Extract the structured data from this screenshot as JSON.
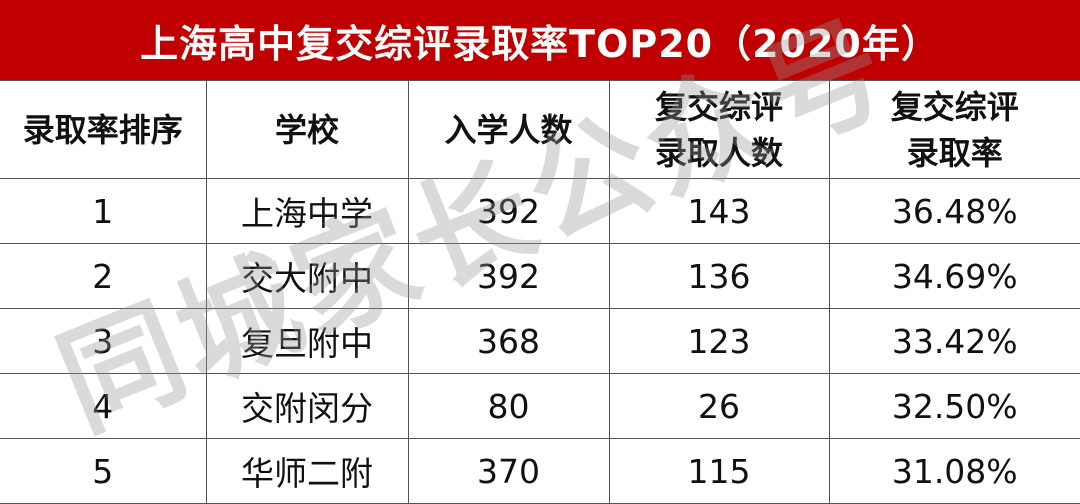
{
  "title": "上海高中复交综评录取率TOP20（2020年）",
  "colors": {
    "title_bar": "#c00000",
    "title_text": "#ffffff"
  },
  "headers": [
    "录取率排序",
    "学校",
    "入学人数",
    "复交综评\n录取人数",
    "复交综评\n录取率"
  ],
  "header_lines": [
    [
      "录取率排序"
    ],
    [
      "学校"
    ],
    [
      "入学人数"
    ],
    [
      "复交综评",
      "录取人数"
    ],
    [
      "复交综评",
      "录取率"
    ]
  ],
  "rows": [
    [
      "1",
      "上海中学",
      "392",
      "143",
      "36.48%"
    ],
    [
      "2",
      "交大附中",
      "392",
      "136",
      "34.69%"
    ],
    [
      "3",
      "复旦附中",
      "368",
      "123",
      "33.42%"
    ],
    [
      "4",
      "交附闵分",
      "80",
      "26",
      "32.50%"
    ],
    [
      "5",
      "华师二附",
      "370",
      "115",
      "31.08%"
    ]
  ],
  "watermark": "同城家长公众号"
}
